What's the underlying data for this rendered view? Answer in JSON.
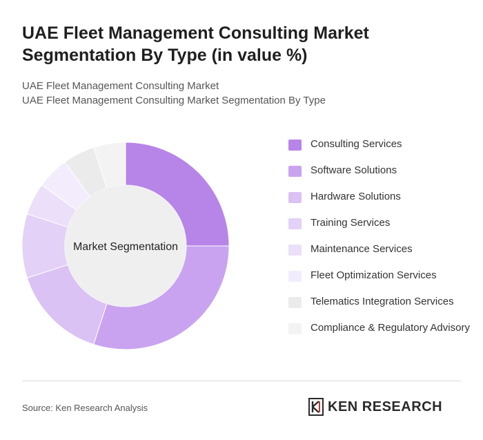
{
  "header": {
    "title": "UAE Fleet Management Consulting Market Segmentation By Type (in value %)",
    "subtitle_line1": "UAE Fleet Management Consulting Market",
    "subtitle_line2": "UAE Fleet Management Consulting Market Segmentation By Type"
  },
  "chart_data": {
    "type": "pie",
    "donut": true,
    "center_label": "Market Segmentation",
    "categories": [
      "Consulting Services",
      "Software Solutions",
      "Hardware Solutions",
      "Training Services",
      "Maintenance Services",
      "Fleet Optimization Services",
      "Telematics Integration Services",
      "Compliance & Regulatory Advisory"
    ],
    "values": [
      25,
      30,
      15,
      10,
      5,
      5,
      5,
      5
    ],
    "colors": [
      "#b784e8",
      "#c9a3f0",
      "#dac2f4",
      "#e3d1f7",
      "#ebdff9",
      "#f3ecfc",
      "#ebebeb",
      "#f3f3f3"
    ],
    "legend_position": "right"
  },
  "footer": {
    "source": "Source: Ken Research Analysis",
    "brand": "KEN RESEARCH"
  }
}
